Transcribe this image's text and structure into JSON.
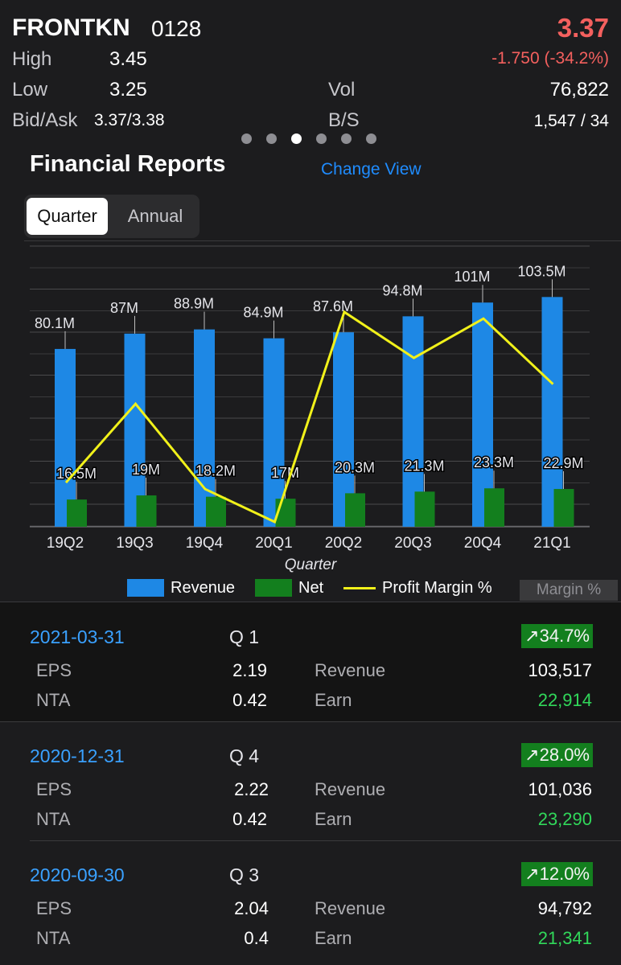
{
  "quote": {
    "name": "FRONTKN",
    "code": "0128",
    "price": "3.37",
    "change": "-1.750 (-34.2%)",
    "high_label": "High",
    "high": "3.45",
    "low_label": "Low",
    "low": "3.25",
    "bidask_label": "Bid/Ask",
    "bidask": "3.37/3.38",
    "vol_label": "Vol",
    "vol": "76,822",
    "bs_label": "B/S",
    "bs": "1,547 / 34"
  },
  "pager": {
    "count": 6,
    "active_index": 2
  },
  "financial": {
    "title": "Financial Reports",
    "change_view": "Change View",
    "tabs": [
      "Quarter",
      "Annual"
    ],
    "selected_tab": "Quarter"
  },
  "legend": {
    "revenue": "Revenue",
    "net": "Net",
    "margin": "Profit Margin %",
    "margin_button": "Margin %"
  },
  "chart_data": {
    "type": "bar",
    "xlabel": "Quarter",
    "categories": [
      "19Q2",
      "19Q3",
      "19Q4",
      "20Q1",
      "20Q2",
      "20Q3",
      "20Q4",
      "21Q1"
    ],
    "ylim": [
      0,
      120
    ],
    "series": [
      {
        "name": "Revenue",
        "color": "#1e88e5",
        "values": [
          80.1,
          87,
          88.9,
          84.9,
          87.6,
          94.8,
          101,
          103.5
        ],
        "labels": [
          "80.1M",
          "87M",
          "88.9M",
          "84.9M",
          "87.6M",
          "94.8M",
          "101M",
          "103.5M"
        ]
      },
      {
        "name": "Net",
        "color": "#137f1e",
        "values": [
          16.5,
          19,
          18.2,
          17,
          20.3,
          21.3,
          23.3,
          22.9
        ],
        "labels": [
          "16.5M",
          "19M",
          "18.2M",
          "17M",
          "20.3M",
          "21.3M",
          "23.3M",
          "22.9M"
        ]
      },
      {
        "name": "Profit Margin %",
        "color": "#f1f11a",
        "type": "line",
        "values": [
          20.6,
          21.8,
          20.5,
          20.0,
          23.2,
          22.5,
          23.1,
          22.1
        ]
      }
    ]
  },
  "reports": [
    {
      "date": "2021-03-31",
      "quarter": "Q 1",
      "change": "↗34.7%",
      "eps_label": "EPS",
      "eps": "2.19",
      "nta_label": "NTA",
      "nta": "0.42",
      "revenue_label": "Revenue",
      "revenue": "103,517",
      "earn_label": "Earn",
      "earn": "22,914"
    },
    {
      "date": "2020-12-31",
      "quarter": "Q 4",
      "change": "↗28.0%",
      "eps_label": "EPS",
      "eps": "2.22",
      "nta_label": "NTA",
      "nta": "0.42",
      "revenue_label": "Revenue",
      "revenue": "101,036",
      "earn_label": "Earn",
      "earn": "23,290"
    },
    {
      "date": "2020-09-30",
      "quarter": "Q 3",
      "change": "↗12.0%",
      "eps_label": "EPS",
      "eps": "2.04",
      "nta_label": "NTA",
      "nta": "0.4",
      "revenue_label": "Revenue",
      "revenue": "94,792",
      "earn_label": "Earn",
      "earn": "21,341"
    }
  ]
}
